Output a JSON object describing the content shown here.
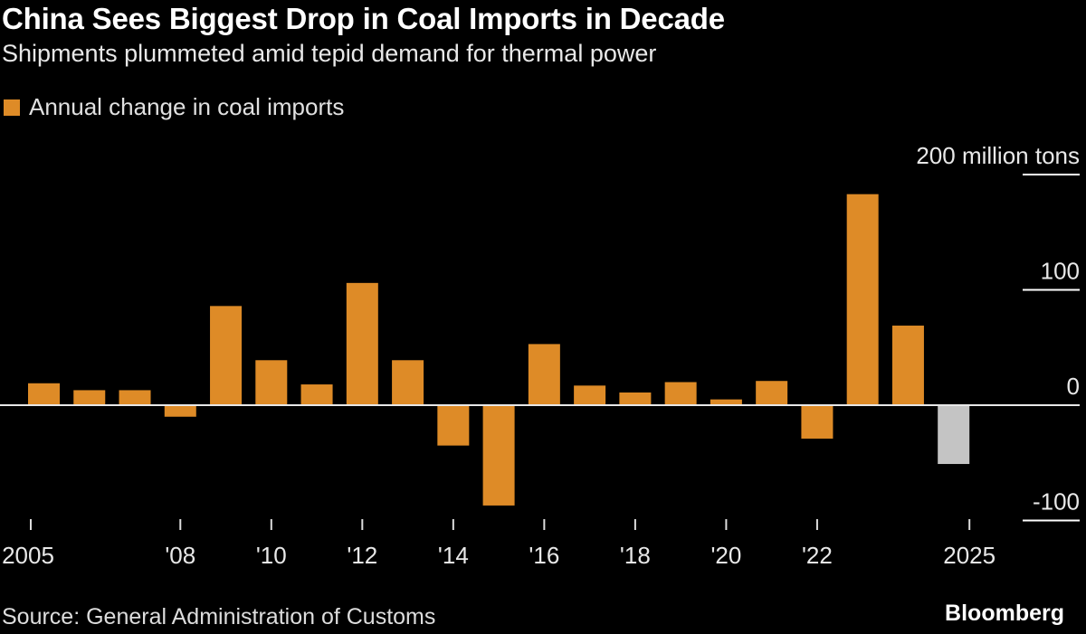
{
  "chart_data": {
    "type": "bar",
    "title": "China Sees Biggest Drop in Coal Imports in Decade",
    "subtitle": "Shipments plummeted amid tepid demand for thermal power",
    "legend": [
      {
        "name": "Annual change in coal imports",
        "color": "#DE8B27"
      }
    ],
    "legend_placement": "top-left",
    "categories": [
      "2005",
      "2006",
      "2007",
      "2008",
      "2009",
      "2010",
      "2011",
      "2012",
      "2013",
      "2014",
      "2015",
      "2016",
      "2017",
      "2018",
      "2019",
      "2020",
      "2021",
      "2022",
      "2023",
      "2024",
      "2025"
    ],
    "series": [
      {
        "name": "Annual change in coal imports",
        "values": [
          19,
          13,
          13,
          -10,
          86,
          39,
          18,
          106,
          39,
          -35,
          -87,
          53,
          17,
          11,
          20,
          5,
          21,
          -29,
          183,
          69,
          -51
        ]
      }
    ],
    "highlight": {
      "category": "2025",
      "color": "#C4C4C4"
    },
    "bar_color": "#DE8B27",
    "x_tick_labels": [
      {
        "category": "2005",
        "label": "2005"
      },
      {
        "category": "2008",
        "label": "'08"
      },
      {
        "category": "2010",
        "label": "'10"
      },
      {
        "category": "2012",
        "label": "'12"
      },
      {
        "category": "2014",
        "label": "'14"
      },
      {
        "category": "2016",
        "label": "'16"
      },
      {
        "category": "2018",
        "label": "'18"
      },
      {
        "category": "2020",
        "label": "'20"
      },
      {
        "category": "2022",
        "label": "'22"
      },
      {
        "category": "2025",
        "label": "2025"
      }
    ],
    "y_ticks": [
      {
        "value": 200,
        "label": "200 million tons"
      },
      {
        "value": 100,
        "label": "100"
      },
      {
        "value": 0,
        "label": "0"
      },
      {
        "value": -100,
        "label": "-100"
      }
    ],
    "ylim": [
      -100,
      200
    ],
    "yaxis_position": "right",
    "xlabel": "",
    "ylabel": "",
    "grid": false
  },
  "footer": {
    "source": "Source: General Administration of Customs",
    "brand": "Bloomberg"
  }
}
